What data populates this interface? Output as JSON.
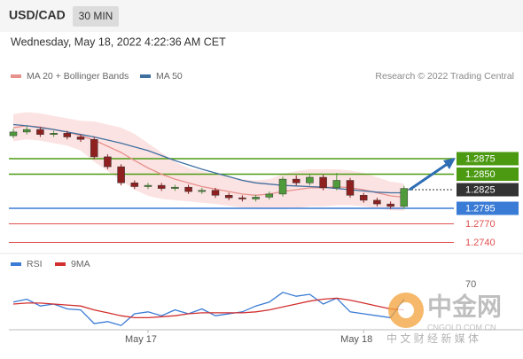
{
  "header": {
    "symbol": "USD/CAD",
    "interval": "30 MIN",
    "timestamp": "Wednesday, May 18, 2022 4:22:36 AM CET",
    "credit": "Research © 2022 Trading Central"
  },
  "watermark": {
    "brand": "中金网",
    "site": "CNGOLD.COM.CN",
    "tagline": "中 文 财 经 新 媒 体"
  },
  "chart_data": [
    {
      "type": "candlestick",
      "categories": [
        null,
        null,
        null,
        null,
        null,
        null,
        null,
        null,
        null,
        null,
        "May 17",
        null,
        null,
        null,
        null,
        null,
        null,
        null,
        null,
        null,
        null,
        null,
        null,
        null,
        null,
        null,
        "May 18",
        null,
        null,
        null
      ],
      "open": [
        1.2912,
        1.2918,
        1.2922,
        1.2914,
        1.2916,
        1.291,
        1.2906,
        1.2878,
        1.2862,
        1.2836,
        1.283,
        1.2832,
        1.2827,
        1.2829,
        1.2822,
        1.2824,
        1.2816,
        1.2812,
        1.281,
        1.2813,
        1.2818,
        1.2842,
        1.2836,
        1.2845,
        1.2828,
        1.284,
        1.2816,
        1.2808,
        1.2802,
        1.2798
      ],
      "high": [
        1.2923,
        1.2927,
        1.2926,
        1.292,
        1.292,
        1.2914,
        1.291,
        1.2882,
        1.2866,
        1.284,
        1.2836,
        1.2836,
        1.2833,
        1.2833,
        1.2828,
        1.2828,
        1.282,
        1.2816,
        1.2817,
        1.2822,
        1.2846,
        1.2848,
        1.285,
        1.2849,
        1.2852,
        1.2844,
        1.282,
        1.2812,
        1.2806,
        1.2831
      ],
      "low": [
        1.2908,
        1.2914,
        1.291,
        1.291,
        1.2906,
        1.2902,
        1.2874,
        1.2858,
        1.2832,
        1.2826,
        1.2826,
        1.2823,
        1.2823,
        1.2818,
        1.2818,
        1.2812,
        1.2808,
        1.2806,
        1.2806,
        1.2809,
        1.2814,
        1.2832,
        1.2832,
        1.2824,
        1.2824,
        1.2812,
        1.2804,
        1.2798,
        1.2794,
        1.2794
      ],
      "close": [
        1.2918,
        1.2922,
        1.2914,
        1.2916,
        1.291,
        1.2906,
        1.2878,
        1.2862,
        1.2836,
        1.283,
        1.2832,
        1.2827,
        1.2829,
        1.2822,
        1.2824,
        1.2816,
        1.2812,
        1.281,
        1.2813,
        1.2818,
        1.2842,
        1.2836,
        1.2845,
        1.2828,
        1.284,
        1.2816,
        1.2808,
        1.2802,
        1.2798,
        1.2827
      ],
      "up_color": "#4f9a3a",
      "down_color": "#8e2020",
      "series": [
        {
          "name": "MA 20 + Bollinger Bands",
          "color": "#e8908c",
          "values": [
            1.2925,
            1.2928,
            1.2926,
            1.2922,
            1.2918,
            1.2912,
            1.2905,
            1.2895,
            1.2885,
            1.2872,
            1.286,
            1.285,
            1.2842,
            1.2836,
            1.283,
            1.2826,
            1.2822,
            1.2818,
            1.2816,
            1.2818,
            1.2822,
            1.2825,
            1.2828,
            1.2828,
            1.283,
            1.2828,
            1.2825,
            1.282,
            1.2815,
            1.2813
          ],
          "band_upper": [
            1.2947,
            1.295,
            1.2948,
            1.2944,
            1.294,
            1.2936,
            1.2935,
            1.293,
            1.2925,
            1.2915,
            1.29,
            1.2885,
            1.287,
            1.286,
            1.2855,
            1.285,
            1.2845,
            1.2842,
            1.284,
            1.2842,
            1.285,
            1.2855,
            1.2858,
            1.2858,
            1.2858,
            1.2856,
            1.2852,
            1.2845,
            1.2838,
            1.2835
          ],
          "band_lower": [
            1.2903,
            1.2906,
            1.2904,
            1.29,
            1.2896,
            1.2888,
            1.287,
            1.2855,
            1.284,
            1.2825,
            1.2815,
            1.281,
            1.2808,
            1.2806,
            1.2804,
            1.2802,
            1.2799,
            1.2796,
            1.2794,
            1.2794,
            1.2794,
            1.2795,
            1.2798,
            1.2798,
            1.28,
            1.28,
            1.2798,
            1.2795,
            1.2792,
            1.2791
          ],
          "band_color": "#fbdcdc"
        },
        {
          "name": "MA 50",
          "color": "#3f6f9f",
          "values": [
            1.293,
            1.2928,
            1.2925,
            1.2922,
            1.2918,
            1.2914,
            1.291,
            1.2905,
            1.29,
            1.2894,
            1.2888,
            1.288,
            1.2872,
            1.2865,
            1.2858,
            1.2852,
            1.2846,
            1.284,
            1.2836,
            1.2834,
            1.2832,
            1.2831,
            1.283,
            1.2829,
            1.2827,
            1.2825,
            1.2823,
            1.2821,
            1.282,
            1.282
          ]
        }
      ],
      "levels": [
        {
          "value": 1.2875,
          "color": "#4c9a12",
          "boxed": true,
          "style": "solid"
        },
        {
          "value": 1.285,
          "label": "1.2850",
          "color": "#4c9a12",
          "boxed": true,
          "style": "solid"
        },
        {
          "value": 1.2825,
          "color": "#333333",
          "boxed": true,
          "style": "dotted"
        },
        {
          "value": 1.2795,
          "color": "#3a7bd5",
          "boxed": true,
          "style": "solid"
        },
        {
          "value": 1.277,
          "label": "1.2770",
          "color": "#e05050",
          "boxed": false,
          "style": "solid"
        },
        {
          "value": 1.274,
          "label": "1.2740",
          "color": "#e05050",
          "boxed": false,
          "style": "solid"
        }
      ],
      "ylim": [
        1.273,
        1.296
      ]
    },
    {
      "type": "line",
      "series": [
        {
          "name": "RSI",
          "color": "#3a7bd5",
          "values": [
            52,
            55,
            48,
            50,
            45,
            44,
            30,
            32,
            28,
            40,
            42,
            38,
            44,
            40,
            45,
            38,
            40,
            42,
            48,
            52,
            62,
            58,
            60,
            50,
            56,
            42,
            40,
            38,
            36,
            55
          ]
        },
        {
          "name": "9MA",
          "color": "#d32f2f",
          "values": [
            50,
            51,
            51,
            50,
            49,
            48,
            44,
            41,
            38,
            36,
            36,
            37,
            38,
            40,
            41,
            41,
            41,
            41,
            42,
            44,
            47,
            50,
            53,
            55,
            56,
            54,
            51,
            48,
            45,
            44
          ]
        }
      ],
      "ylim": [
        20,
        80
      ],
      "yticks": [
        70
      ]
    }
  ]
}
